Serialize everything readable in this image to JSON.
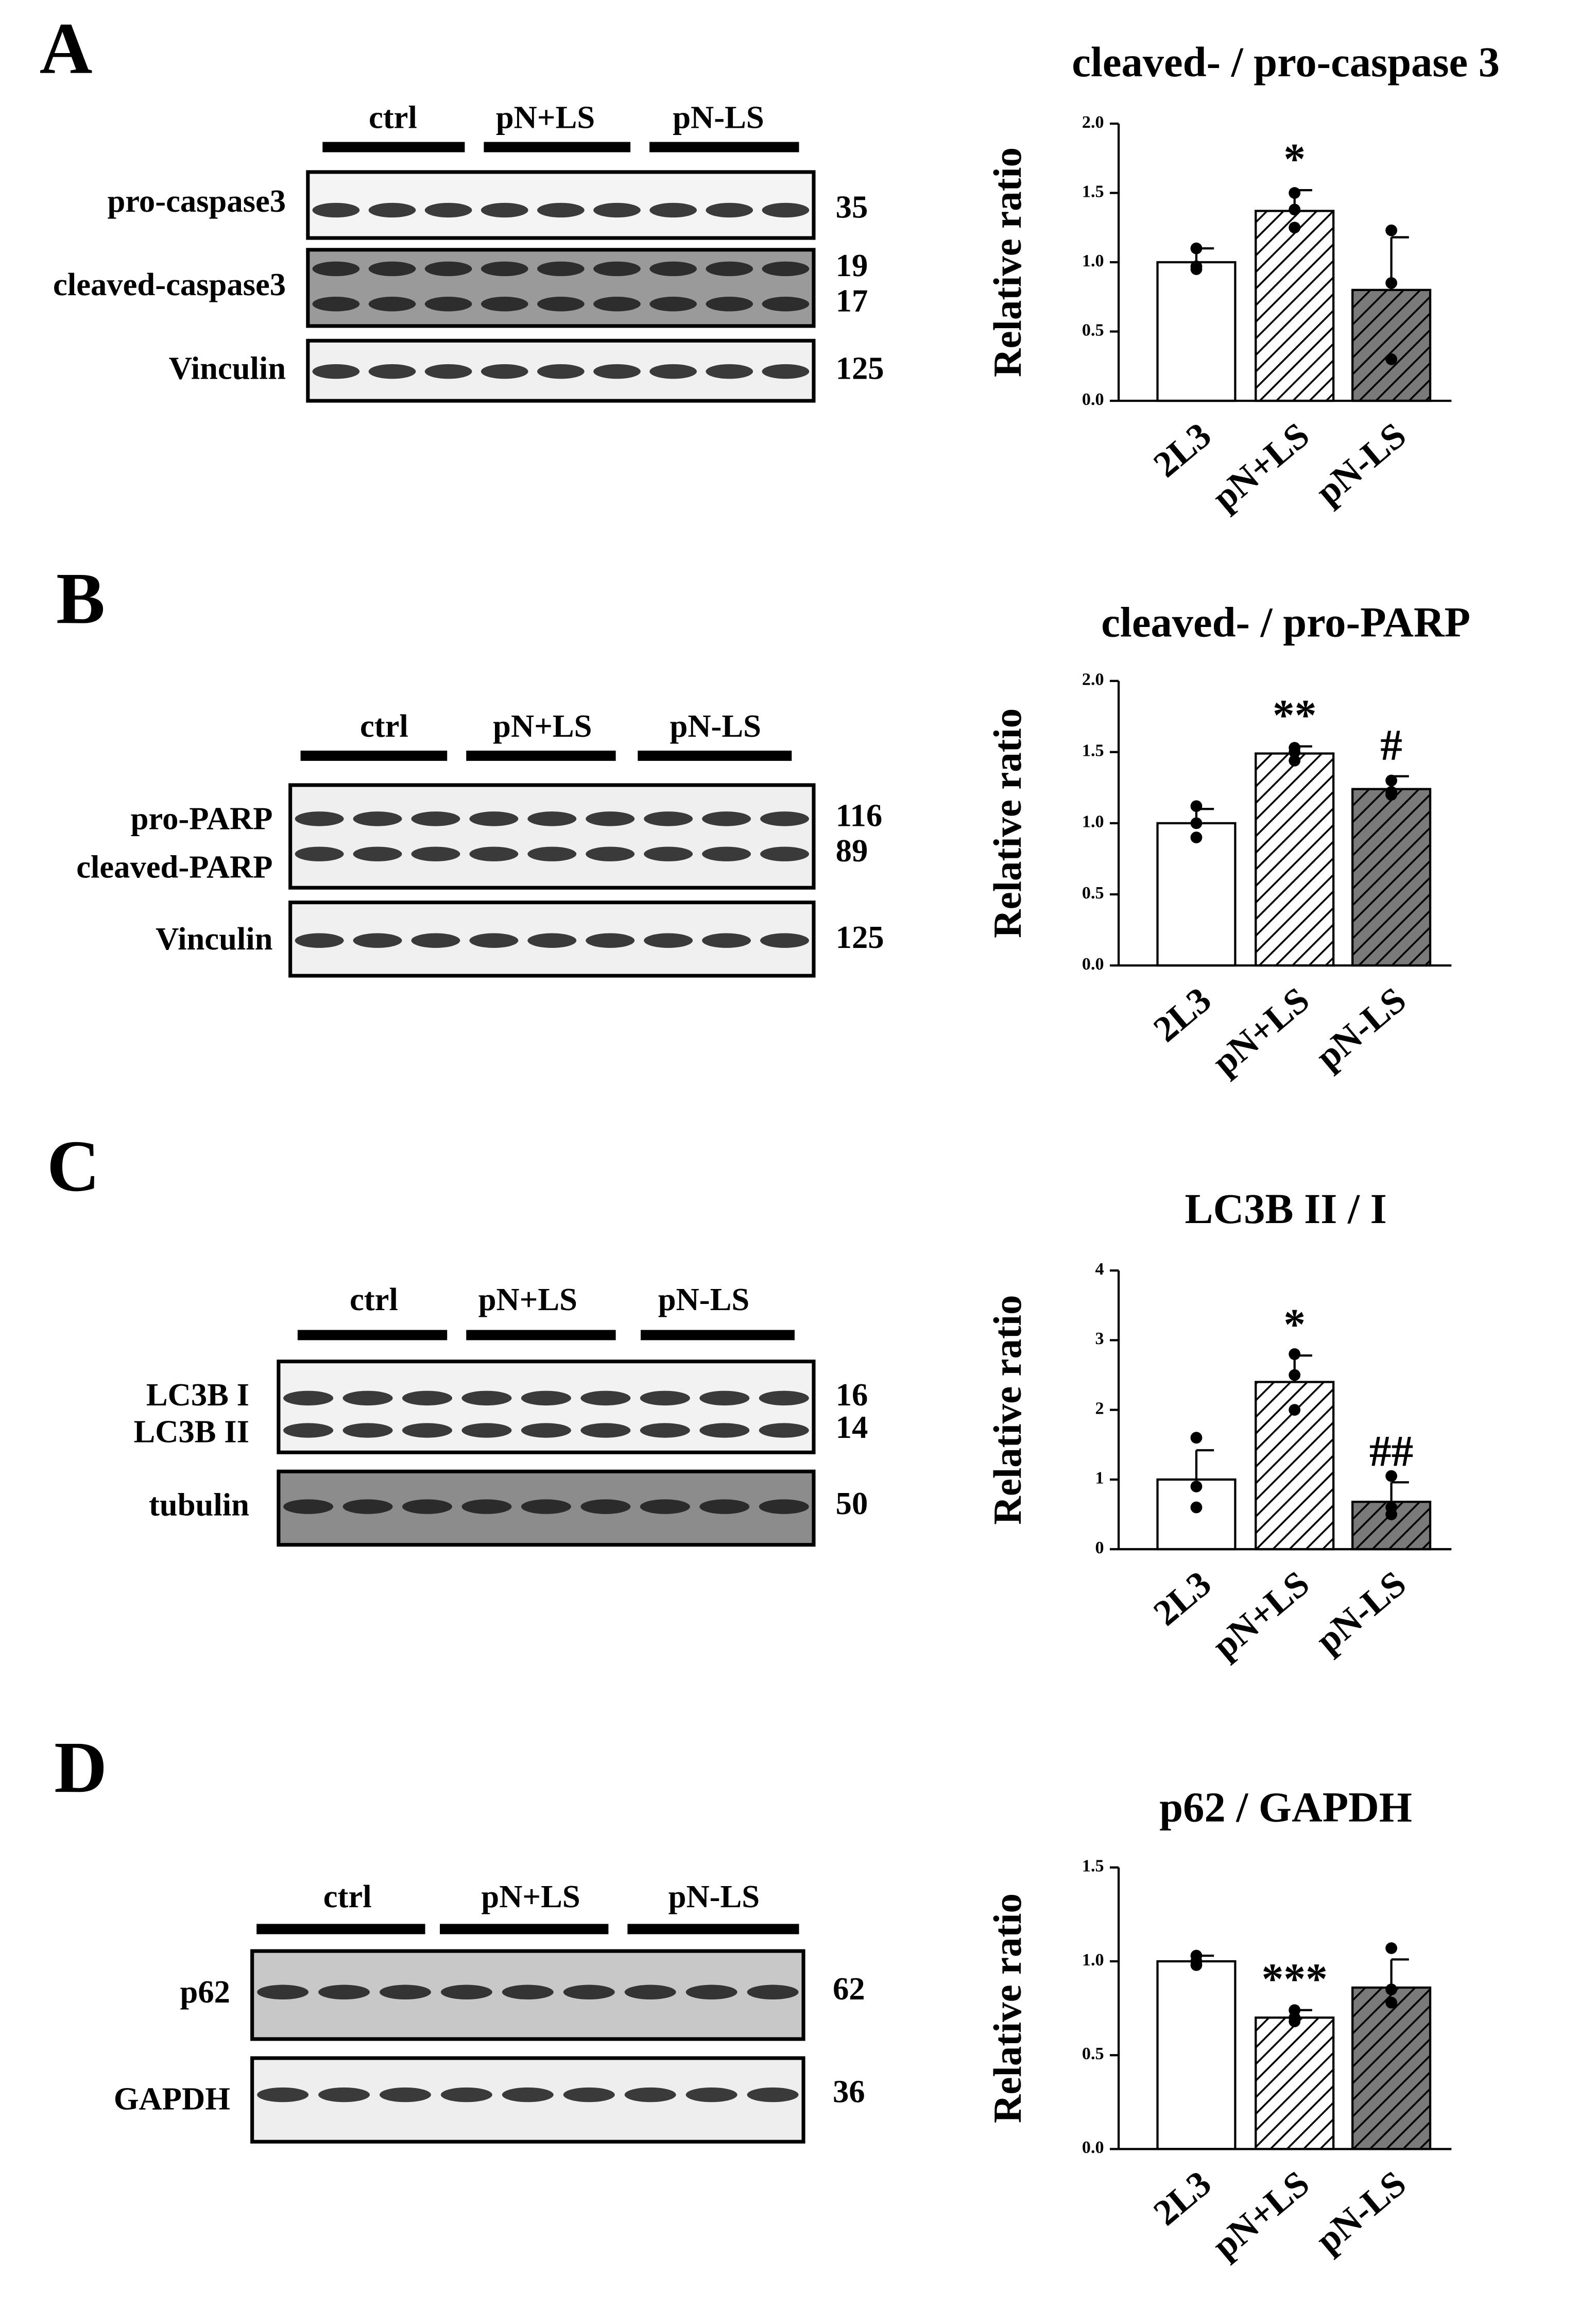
{
  "panels": [
    {
      "letter": "A",
      "groups": [
        "ctrl",
        "pN+LS",
        "pN-LS"
      ],
      "blots": [
        {
          "labels": [
            "pro-caspase3"
          ],
          "kda": [
            "35"
          ]
        },
        {
          "labels": [
            "cleaved-caspase3"
          ],
          "kda": [
            "19",
            "17"
          ]
        },
        {
          "labels": [
            "Vinculin"
          ],
          "kda": [
            "125"
          ]
        }
      ]
    },
    {
      "letter": "B",
      "groups": [
        "ctrl",
        "pN+LS",
        "pN-LS"
      ],
      "blots": [
        {
          "labels": [
            "pro-PARP",
            "cleaved-PARP"
          ],
          "kda": [
            "116",
            "89"
          ]
        },
        {
          "labels": [
            "Vinculin"
          ],
          "kda": [
            "125"
          ]
        }
      ]
    },
    {
      "letter": "C",
      "groups": [
        "ctrl",
        "pN+LS",
        "pN-LS"
      ],
      "blots": [
        {
          "labels": [
            "LC3B I",
            "LC3B II"
          ],
          "kda": [
            "16",
            "14"
          ]
        },
        {
          "labels": [
            "tubulin"
          ],
          "kda": [
            "50"
          ]
        }
      ]
    },
    {
      "letter": "D",
      "groups": [
        "ctrl",
        "pN+LS",
        "pN-LS"
      ],
      "blots": [
        {
          "labels": [
            "p62"
          ],
          "kda": [
            "62"
          ]
        },
        {
          "labels": [
            "GAPDH"
          ],
          "kda": [
            "36"
          ]
        }
      ]
    }
  ],
  "chart_data": [
    {
      "type": "bar",
      "title": "cleaved- / pro-caspase 3",
      "y_label": "Relative ratio",
      "categories": [
        "2L3",
        "pN+LS",
        "pN-LS"
      ],
      "values": [
        1.0,
        1.37,
        0.8
      ],
      "errors": [
        0.1,
        0.15,
        0.38
      ],
      "points": [
        [
          1.1,
          0.97,
          0.95
        ],
        [
          1.5,
          1.38,
          1.25
        ],
        [
          1.23,
          0.85,
          0.3
        ]
      ],
      "colors": [
        "#ffffff",
        "#ffffff",
        "#7a7a7a"
      ],
      "hatch": [
        false,
        true,
        true
      ],
      "annotations": [
        {
          "x": "pN+LS",
          "text": "*"
        }
      ],
      "ylim": [
        0,
        2
      ],
      "yticks": [
        {
          "value": 0,
          "label": "0.0"
        },
        {
          "value": 0.5,
          "label": "0.5"
        },
        {
          "value": 1,
          "label": "1.0"
        },
        {
          "value": 1.5,
          "label": "1.5"
        },
        {
          "value": 2,
          "label": "2.0"
        }
      ]
    },
    {
      "type": "bar",
      "title": "cleaved- / pro-PARP",
      "y_label": "Relative ratio",
      "categories": [
        "2L3",
        "pN+LS",
        "pN-LS"
      ],
      "values": [
        1.0,
        1.49,
        1.24
      ],
      "errors": [
        0.1,
        0.05,
        0.09
      ],
      "points": [
        [
          1.12,
          1.0,
          0.9
        ],
        [
          1.53,
          1.5,
          1.44
        ],
        [
          1.3,
          1.22,
          1.2
        ]
      ],
      "colors": [
        "#ffffff",
        "#ffffff",
        "#7a7a7a"
      ],
      "hatch": [
        false,
        true,
        true
      ],
      "annotations": [
        {
          "x": "pN+LS",
          "text": "**"
        },
        {
          "x": "pN-LS",
          "text": "#"
        }
      ],
      "ylim": [
        0,
        2
      ],
      "yticks": [
        {
          "value": 0,
          "label": "0.0"
        },
        {
          "value": 0.5,
          "label": "0.5"
        },
        {
          "value": 1,
          "label": "1.0"
        },
        {
          "value": 1.5,
          "label": "1.5"
        },
        {
          "value": 2,
          "label": "2.0"
        }
      ]
    },
    {
      "type": "bar",
      "title": "LC3B II / I",
      "y_label": "Relative ratio",
      "categories": [
        "2L3",
        "pN+LS",
        "pN-LS"
      ],
      "values": [
        1.0,
        2.4,
        0.68
      ],
      "errors": [
        0.42,
        0.38,
        0.28
      ],
      "points": [
        [
          1.6,
          0.9,
          0.6
        ],
        [
          2.8,
          2.5,
          2.0
        ],
        [
          1.05,
          0.6,
          0.5
        ]
      ],
      "colors": [
        "#ffffff",
        "#ffffff",
        "#7a7a7a"
      ],
      "hatch": [
        false,
        true,
        true
      ],
      "annotations": [
        {
          "x": "pN+LS",
          "text": "*"
        },
        {
          "x": "pN-LS",
          "text": "##"
        }
      ],
      "ylim": [
        0,
        4
      ],
      "yticks": [
        0,
        1,
        2,
        3,
        4
      ]
    },
    {
      "type": "bar",
      "title": "p62 / GAPDH",
      "y_label": "Relative ratio",
      "categories": [
        "2L3",
        "pN+LS",
        "pN-LS"
      ],
      "values": [
        1.0,
        0.7,
        0.86
      ],
      "errors": [
        0.03,
        0.04,
        0.15
      ],
      "points": [
        [
          1.03,
          1.0,
          0.98
        ],
        [
          0.74,
          0.7,
          0.68
        ],
        [
          1.07,
          0.85,
          0.78
        ]
      ],
      "colors": [
        "#ffffff",
        "#ffffff",
        "#7a7a7a"
      ],
      "hatch": [
        false,
        true,
        true
      ],
      "annotations": [
        {
          "x": "pN+LS",
          "text": "***"
        }
      ],
      "ylim": [
        0,
        1.5
      ],
      "yticks": [
        {
          "value": 0,
          "label": "0.0"
        },
        {
          "value": 0.5,
          "label": "0.5"
        },
        {
          "value": 1,
          "label": "1.0"
        },
        {
          "value": 1.5,
          "label": "1.5"
        }
      ]
    }
  ]
}
